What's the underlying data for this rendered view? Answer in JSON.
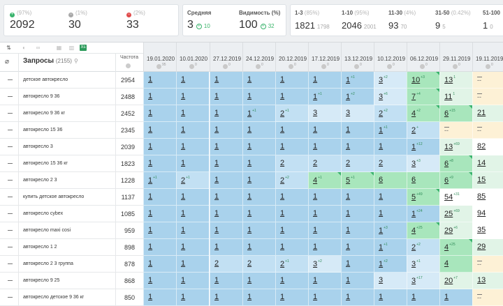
{
  "stats": [
    {
      "icon": "plus-circle-green-icon",
      "label": "(97%)",
      "value": "2092"
    },
    {
      "icon": "minus-circle-grey-icon",
      "label": "(1%)",
      "value": "30"
    },
    {
      "icon": "minus-circle-red-icon",
      "label": "(2%)",
      "value": "33"
    },
    {
      "label": "Средняя",
      "value": "3",
      "sub": "10"
    },
    {
      "label": "Видимость (%)",
      "value": "100",
      "sub": "32"
    },
    {
      "label": "1-3",
      "label_pct": "(85%)",
      "value": "1821",
      "sub": "1798"
    },
    {
      "label": "1-10",
      "label_pct": "(95%)",
      "value": "2046",
      "sub": "2001"
    },
    {
      "label": "11-30",
      "label_pct": "(4%)",
      "value": "93",
      "sub": "70"
    },
    {
      "label": "31-50",
      "label_pct": "(0.42%)",
      "value": "9",
      "sub": "5"
    },
    {
      "label": "51-100",
      "label_pct": "",
      "value": "1",
      "sub": "0"
    }
  ],
  "table": {
    "queries_title": "Запросы",
    "queries_count": "(2155)",
    "freq_title": "Частота",
    "dates": [
      {
        "date": "19.01.2020",
        "badge": "95"
      },
      {
        "date": "10.01.2020",
        "badge": "0"
      },
      {
        "date": "27.12.2019",
        "badge": "0"
      },
      {
        "date": "24.12.2019",
        "badge": "0"
      },
      {
        "date": "20.12.2019",
        "badge": "0"
      },
      {
        "date": "17.12.2019",
        "badge": "0"
      },
      {
        "date": "13.12.2019",
        "badge": "0"
      },
      {
        "date": "10.12.2019",
        "badge": "0"
      },
      {
        "date": "06.12.2019",
        "badge": "0"
      },
      {
        "date": "29.11.2019",
        "badge": "0"
      },
      {
        "date": "19.11.2019",
        "badge": "0"
      }
    ],
    "rows": [
      {
        "kw": "детское автокресло",
        "freq": "2954",
        "cells": [
          [
            "1",
            ""
          ],
          [
            "1",
            ""
          ],
          [
            "1",
            ""
          ],
          [
            "1",
            ""
          ],
          [
            "1",
            ""
          ],
          [
            "1",
            ""
          ],
          [
            "1",
            "+1"
          ],
          [
            "3",
            "+2"
          ],
          [
            "10",
            "+3"
          ],
          [
            "13",
            "1"
          ],
          [
            "--",
            ""
          ]
        ]
      },
      {
        "kw": "автокресло 9 36",
        "freq": "2488",
        "cells": [
          [
            "1",
            ""
          ],
          [
            "1",
            ""
          ],
          [
            "1",
            ""
          ],
          [
            "1",
            ""
          ],
          [
            "1",
            ""
          ],
          [
            "1",
            "+1"
          ],
          [
            "1",
            "+2"
          ],
          [
            "3",
            "+6"
          ],
          [
            "7",
            "+4"
          ],
          [
            "11",
            "1"
          ],
          [
            "--",
            ""
          ]
        ]
      },
      {
        "kw": "автокресло 9 36 кг",
        "freq": "2452",
        "cells": [
          [
            "1",
            ""
          ],
          [
            "1",
            ""
          ],
          [
            "1",
            ""
          ],
          [
            "1",
            "+1"
          ],
          [
            "2",
            "+1"
          ],
          [
            "3",
            ""
          ],
          [
            "3",
            ""
          ],
          [
            "2",
            "+2"
          ],
          [
            "4",
            "+2"
          ],
          [
            "6",
            "+15"
          ],
          [
            "21",
            ""
          ]
        ]
      },
      {
        "kw": "автокресло 15 36",
        "freq": "2345",
        "cells": [
          [
            "1",
            ""
          ],
          [
            "1",
            ""
          ],
          [
            "1",
            ""
          ],
          [
            "1",
            ""
          ],
          [
            "1",
            ""
          ],
          [
            "1",
            ""
          ],
          [
            "1",
            ""
          ],
          [
            "1",
            "+1"
          ],
          [
            "2",
            "+"
          ],
          [
            "--",
            ""
          ],
          [
            "--",
            ""
          ]
        ]
      },
      {
        "kw": "автокресло 3",
        "freq": "2039",
        "cells": [
          [
            "1",
            ""
          ],
          [
            "1",
            ""
          ],
          [
            "1",
            ""
          ],
          [
            "1",
            ""
          ],
          [
            "1",
            ""
          ],
          [
            "1",
            ""
          ],
          [
            "1",
            ""
          ],
          [
            "1",
            ""
          ],
          [
            "1",
            "+12"
          ],
          [
            "13",
            "+69"
          ],
          [
            "82",
            ""
          ]
        ]
      },
      {
        "kw": "автокресло 15 36 кг",
        "freq": "1823",
        "cells": [
          [
            "1",
            ""
          ],
          [
            "1",
            ""
          ],
          [
            "1",
            ""
          ],
          [
            "1",
            ""
          ],
          [
            "2",
            ""
          ],
          [
            "2",
            ""
          ],
          [
            "2",
            ""
          ],
          [
            "2",
            ""
          ],
          [
            "3",
            "+3"
          ],
          [
            "6",
            "+8"
          ],
          [
            "14",
            ""
          ]
        ]
      },
      {
        "kw": "автокресло 2 3",
        "freq": "1228",
        "cells": [
          [
            "1",
            "+1"
          ],
          [
            "2",
            "+1"
          ],
          [
            "1",
            ""
          ],
          [
            "1",
            ""
          ],
          [
            "2",
            "+2"
          ],
          [
            "4",
            "+1"
          ],
          [
            "5",
            "+1"
          ],
          [
            "6",
            ""
          ],
          [
            "6",
            ""
          ],
          [
            "6",
            "+9"
          ],
          [
            "15",
            ""
          ]
        ]
      },
      {
        "kw": "купить детское автокресло",
        "freq": "1137",
        "cells": [
          [
            "1",
            ""
          ],
          [
            "1",
            ""
          ],
          [
            "1",
            ""
          ],
          [
            "1",
            ""
          ],
          [
            "1",
            ""
          ],
          [
            "1",
            ""
          ],
          [
            "1",
            ""
          ],
          [
            "1",
            ""
          ],
          [
            "5",
            "+49"
          ],
          [
            "54",
            "+31"
          ],
          [
            "85",
            ""
          ]
        ]
      },
      {
        "kw": "автокресло cybex",
        "freq": "1085",
        "cells": [
          [
            "1",
            ""
          ],
          [
            "1",
            ""
          ],
          [
            "1",
            ""
          ],
          [
            "1",
            ""
          ],
          [
            "1",
            ""
          ],
          [
            "1",
            ""
          ],
          [
            "1",
            ""
          ],
          [
            "1",
            ""
          ],
          [
            "1",
            "+24"
          ],
          [
            "25",
            "+69"
          ],
          [
            "94",
            ""
          ]
        ]
      },
      {
        "kw": "автокресло maxi cosi",
        "freq": "959",
        "cells": [
          [
            "1",
            ""
          ],
          [
            "1",
            ""
          ],
          [
            "1",
            ""
          ],
          [
            "1",
            ""
          ],
          [
            "1",
            ""
          ],
          [
            "1",
            ""
          ],
          [
            "1",
            ""
          ],
          [
            "1",
            "+3"
          ],
          [
            "4",
            "+25"
          ],
          [
            "29",
            "+6"
          ],
          [
            "35",
            ""
          ]
        ]
      },
      {
        "kw": "автокресло 1 2",
        "freq": "898",
        "cells": [
          [
            "1",
            ""
          ],
          [
            "1",
            ""
          ],
          [
            "1",
            ""
          ],
          [
            "1",
            ""
          ],
          [
            "1",
            ""
          ],
          [
            "1",
            ""
          ],
          [
            "1",
            ""
          ],
          [
            "1",
            "+1"
          ],
          [
            "2",
            "+2"
          ],
          [
            "4",
            "+25"
          ],
          [
            "29",
            ""
          ]
        ]
      },
      {
        "kw": "автокресло 2 3 группа",
        "freq": "878",
        "cells": [
          [
            "1",
            ""
          ],
          [
            "1",
            ""
          ],
          [
            "2",
            ""
          ],
          [
            "2",
            ""
          ],
          [
            "2",
            "+1"
          ],
          [
            "3",
            "+2"
          ],
          [
            "1",
            ""
          ],
          [
            "1",
            "+2"
          ],
          [
            "3",
            "+1"
          ],
          [
            "4",
            ""
          ],
          [
            "--",
            ""
          ]
        ]
      },
      {
        "kw": "автокресло 9 25",
        "freq": "868",
        "cells": [
          [
            "1",
            ""
          ],
          [
            "1",
            ""
          ],
          [
            "1",
            ""
          ],
          [
            "1",
            ""
          ],
          [
            "1",
            ""
          ],
          [
            "1",
            ""
          ],
          [
            "1",
            ""
          ],
          [
            "3",
            ""
          ],
          [
            "3",
            "+17"
          ],
          [
            "20",
            "+7"
          ],
          [
            "13",
            ""
          ]
        ]
      },
      {
        "kw": "автокресло детское 9 36 кг",
        "freq": "850",
        "cells": [
          [
            "1",
            ""
          ],
          [
            "1",
            ""
          ],
          [
            "1",
            ""
          ],
          [
            "1",
            ""
          ],
          [
            "1",
            ""
          ],
          [
            "1",
            ""
          ],
          [
            "1",
            ""
          ],
          [
            "1",
            ""
          ],
          [
            "1",
            ""
          ],
          [
            "1",
            ""
          ],
          [
            "--",
            ""
          ]
        ]
      }
    ]
  },
  "colors": {
    "top1": "#a9d2ec",
    "top2": "#c2e0f3",
    "top3": "#d6eaf7",
    "top10": "#a8e6bc",
    "top30": "#e1f4e7",
    "beyond": "#ffffff",
    "none": "#fdf1d6"
  }
}
